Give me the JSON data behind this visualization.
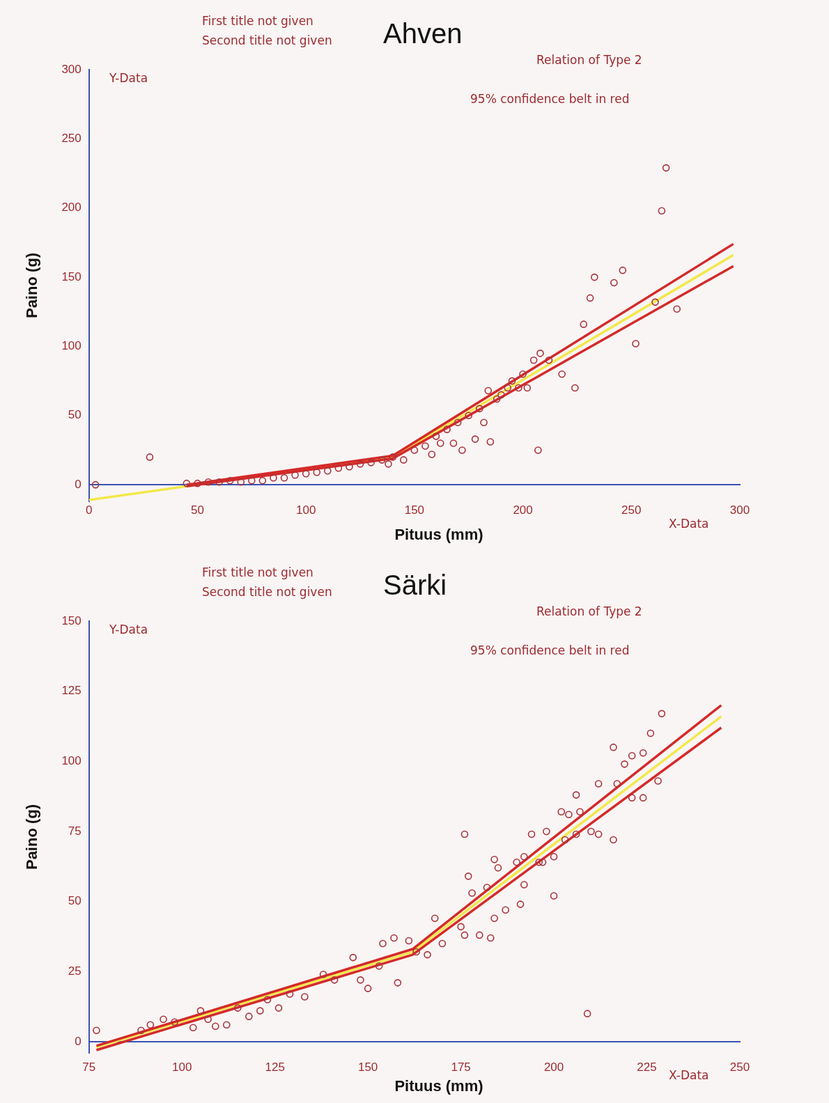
{
  "chart_data": [
    {
      "type": "scatter",
      "title": "Ahven",
      "xlabel": "Pituus (mm)",
      "ylabel": "Paino (g)",
      "annotations": [
        "First title not given",
        "Second title not given",
        "Relation of Type 2",
        "95% confidence belt in red",
        "Y-Data",
        "X-Data"
      ],
      "xlim": [
        0,
        300
      ],
      "xticks": [
        0,
        50,
        100,
        150,
        200,
        250,
        300
      ],
      "ylim": [
        -12,
        300
      ],
      "yticks": [
        0,
        50,
        100,
        150,
        200,
        250,
        300
      ],
      "series": [
        {
          "marker": "circle",
          "color": "#a8323c",
          "x": [
            3,
            28,
            45,
            50,
            55,
            60,
            65,
            70,
            75,
            80,
            85,
            90,
            95,
            100,
            105,
            110,
            115,
            120,
            125,
            130,
            135,
            138,
            140,
            145,
            150,
            155,
            158,
            160,
            162,
            165,
            168,
            170,
            172,
            175,
            178,
            180,
            182,
            184,
            185,
            188,
            190,
            193,
            195,
            198,
            200,
            202,
            205,
            207,
            208,
            212,
            218,
            224,
            228,
            231,
            233,
            242,
            246,
            252,
            261,
            264,
            266,
            271
          ],
          "values": [
            0,
            20,
            1,
            1,
            2,
            2,
            3,
            2,
            3,
            3,
            5,
            5,
            7,
            8,
            9,
            10,
            12,
            13,
            15,
            16,
            18,
            15,
            20,
            18,
            25,
            28,
            22,
            35,
            30,
            40,
            30,
            45,
            25,
            50,
            33,
            55,
            45,
            68,
            31,
            62,
            65,
            70,
            75,
            70,
            80,
            70,
            90,
            25,
            95,
            90,
            80,
            70,
            116,
            135,
            150,
            146,
            155,
            102,
            132,
            198,
            229,
            127
          ]
        },
        {
          "type": "line",
          "color": "#d42a2a",
          "x": [
            45,
            140,
            297
          ],
          "values": [
            0,
            21,
            174
          ]
        },
        {
          "type": "line",
          "color": "#d42a2a",
          "x": [
            45,
            140,
            297
          ],
          "values": [
            -1,
            19,
            158
          ]
        },
        {
          "type": "line",
          "color": "#f2e84a",
          "x": [
            0,
            140,
            297
          ],
          "values": [
            -11,
            20,
            166
          ]
        }
      ]
    },
    {
      "type": "scatter",
      "title": "Särki",
      "xlabel": "Pituus (mm)",
      "ylabel": "Paino (g)",
      "annotations": [
        "First title not given",
        "Second title not given",
        "Relation of Type 2",
        "95% confidence belt in red",
        "Y-Data",
        "X-Data"
      ],
      "xlim": [
        75,
        250
      ],
      "xticks": [
        75,
        100,
        125,
        150,
        175,
        200,
        225,
        250
      ],
      "ylim": [
        -4,
        150
      ],
      "yticks": [
        0,
        25,
        50,
        75,
        100,
        125,
        150
      ],
      "series": [
        {
          "marker": "circle",
          "color": "#a8323c",
          "x": [
            77,
            89,
            91.5,
            95,
            98,
            103,
            105,
            107,
            109,
            112,
            115,
            118,
            121,
            123,
            126,
            129,
            133,
            138,
            141,
            146,
            148,
            150,
            153,
            154,
            158,
            157,
            161,
            163,
            166,
            168,
            170,
            175,
            176,
            176,
            177,
            178,
            180,
            182,
            183,
            184,
            184,
            185,
            187,
            190,
            191,
            192,
            192,
            194,
            196,
            197,
            198,
            200,
            200,
            202,
            203,
            204,
            206,
            206,
            207,
            209,
            210,
            212,
            212,
            216,
            216,
            217,
            219,
            221,
            221,
            224,
            224,
            226,
            228,
            229
          ],
          "values": [
            4,
            4,
            6,
            8,
            7,
            5,
            11,
            8,
            5.5,
            6,
            12,
            9,
            11,
            15,
            12,
            17,
            16,
            24,
            22,
            30,
            22,
            19,
            27,
            35,
            21,
            37,
            36,
            32,
            31,
            44,
            35,
            41,
            38,
            74,
            59,
            53,
            38,
            55,
            37,
            44,
            65,
            62,
            47,
            64,
            49,
            56,
            66,
            74,
            64,
            64,
            75,
            52,
            66,
            82,
            72,
            81,
            88,
            74,
            82,
            10,
            75,
            74,
            92,
            72,
            105,
            92,
            99,
            87,
            102,
            87,
            103,
            110,
            93,
            117
          ]
        },
        {
          "type": "line",
          "color": "#d42a2a",
          "x": [
            77,
            162,
            245
          ],
          "values": [
            -1.5,
            33,
            120
          ]
        },
        {
          "type": "line",
          "color": "#d42a2a",
          "x": [
            77,
            162,
            245
          ],
          "values": [
            -3,
            31,
            112
          ]
        },
        {
          "type": "line",
          "color": "#f2e84a",
          "x": [
            77,
            162,
            245
          ],
          "values": [
            -2,
            32,
            116
          ]
        }
      ]
    }
  ]
}
